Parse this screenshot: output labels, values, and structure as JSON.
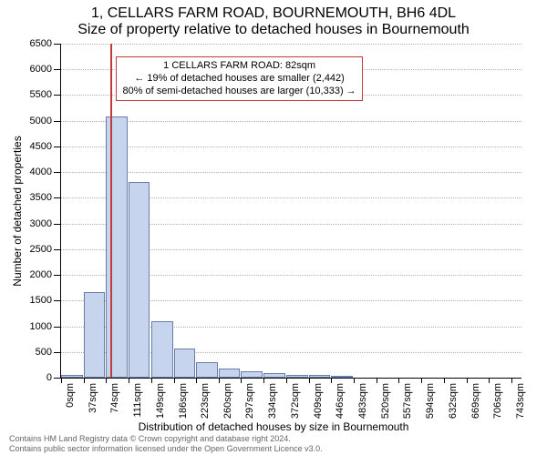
{
  "title": {
    "line1": "1, CELLARS FARM ROAD, BOURNEMOUTH, BH6 4DL",
    "line2": "Size of property relative to detached houses in Bournemouth"
  },
  "axes": {
    "ylabel": "Number of detached properties",
    "xlabel": "Distribution of detached houses by size in Bournemouth",
    "ylim": [
      0,
      6500
    ],
    "ytick_step": 500,
    "xlim": [
      0,
      760
    ],
    "label_fontsize": 12,
    "tick_fontsize": 11,
    "grid_color": "#b0b0b0"
  },
  "chart": {
    "type": "histogram",
    "bar_width_sqm": 37,
    "bar_fill": "#c7d4ee",
    "bar_border": "#6a7fa8",
    "background_color": "#ffffff",
    "bins": [
      {
        "x": 0,
        "label": "0sqm",
        "count": 60
      },
      {
        "x": 37,
        "label": "37sqm",
        "count": 1670
      },
      {
        "x": 74,
        "label": "74sqm",
        "count": 5080
      },
      {
        "x": 111,
        "label": "111sqm",
        "count": 3800
      },
      {
        "x": 149,
        "label": "149sqm",
        "count": 1100
      },
      {
        "x": 186,
        "label": "186sqm",
        "count": 570
      },
      {
        "x": 223,
        "label": "223sqm",
        "count": 300
      },
      {
        "x": 260,
        "label": "260sqm",
        "count": 180
      },
      {
        "x": 297,
        "label": "297sqm",
        "count": 120
      },
      {
        "x": 334,
        "label": "334sqm",
        "count": 90
      },
      {
        "x": 372,
        "label": "372sqm",
        "count": 60
      },
      {
        "x": 409,
        "label": "409sqm",
        "count": 50
      },
      {
        "x": 446,
        "label": "446sqm",
        "count": 30
      },
      {
        "x": 483,
        "label": "483sqm",
        "count": 0
      },
      {
        "x": 520,
        "label": "520sqm",
        "count": 0
      },
      {
        "x": 557,
        "label": "557sqm",
        "count": 0
      },
      {
        "x": 594,
        "label": "594sqm",
        "count": 0
      },
      {
        "x": 632,
        "label": "632sqm",
        "count": 0
      },
      {
        "x": 669,
        "label": "669sqm",
        "count": 0
      },
      {
        "x": 706,
        "label": "706sqm",
        "count": 0
      },
      {
        "x": 743,
        "label": "743sqm",
        "count": 0
      }
    ]
  },
  "marker": {
    "value_sqm": 82,
    "color": "#c23a3a"
  },
  "annotation": {
    "line1": "1 CELLARS FARM ROAD: 82sqm",
    "line2": "← 19% of detached houses are smaller (2,442)",
    "line3": "80% of semi-detached houses are larger (10,333) →",
    "border_color": "#c23a3a",
    "fontsize": 11
  },
  "footer": {
    "line1": "Contains HM Land Registry data © Crown copyright and database right 2024.",
    "line2": "Contains public sector information licensed under the Open Government Licence v3.0."
  }
}
